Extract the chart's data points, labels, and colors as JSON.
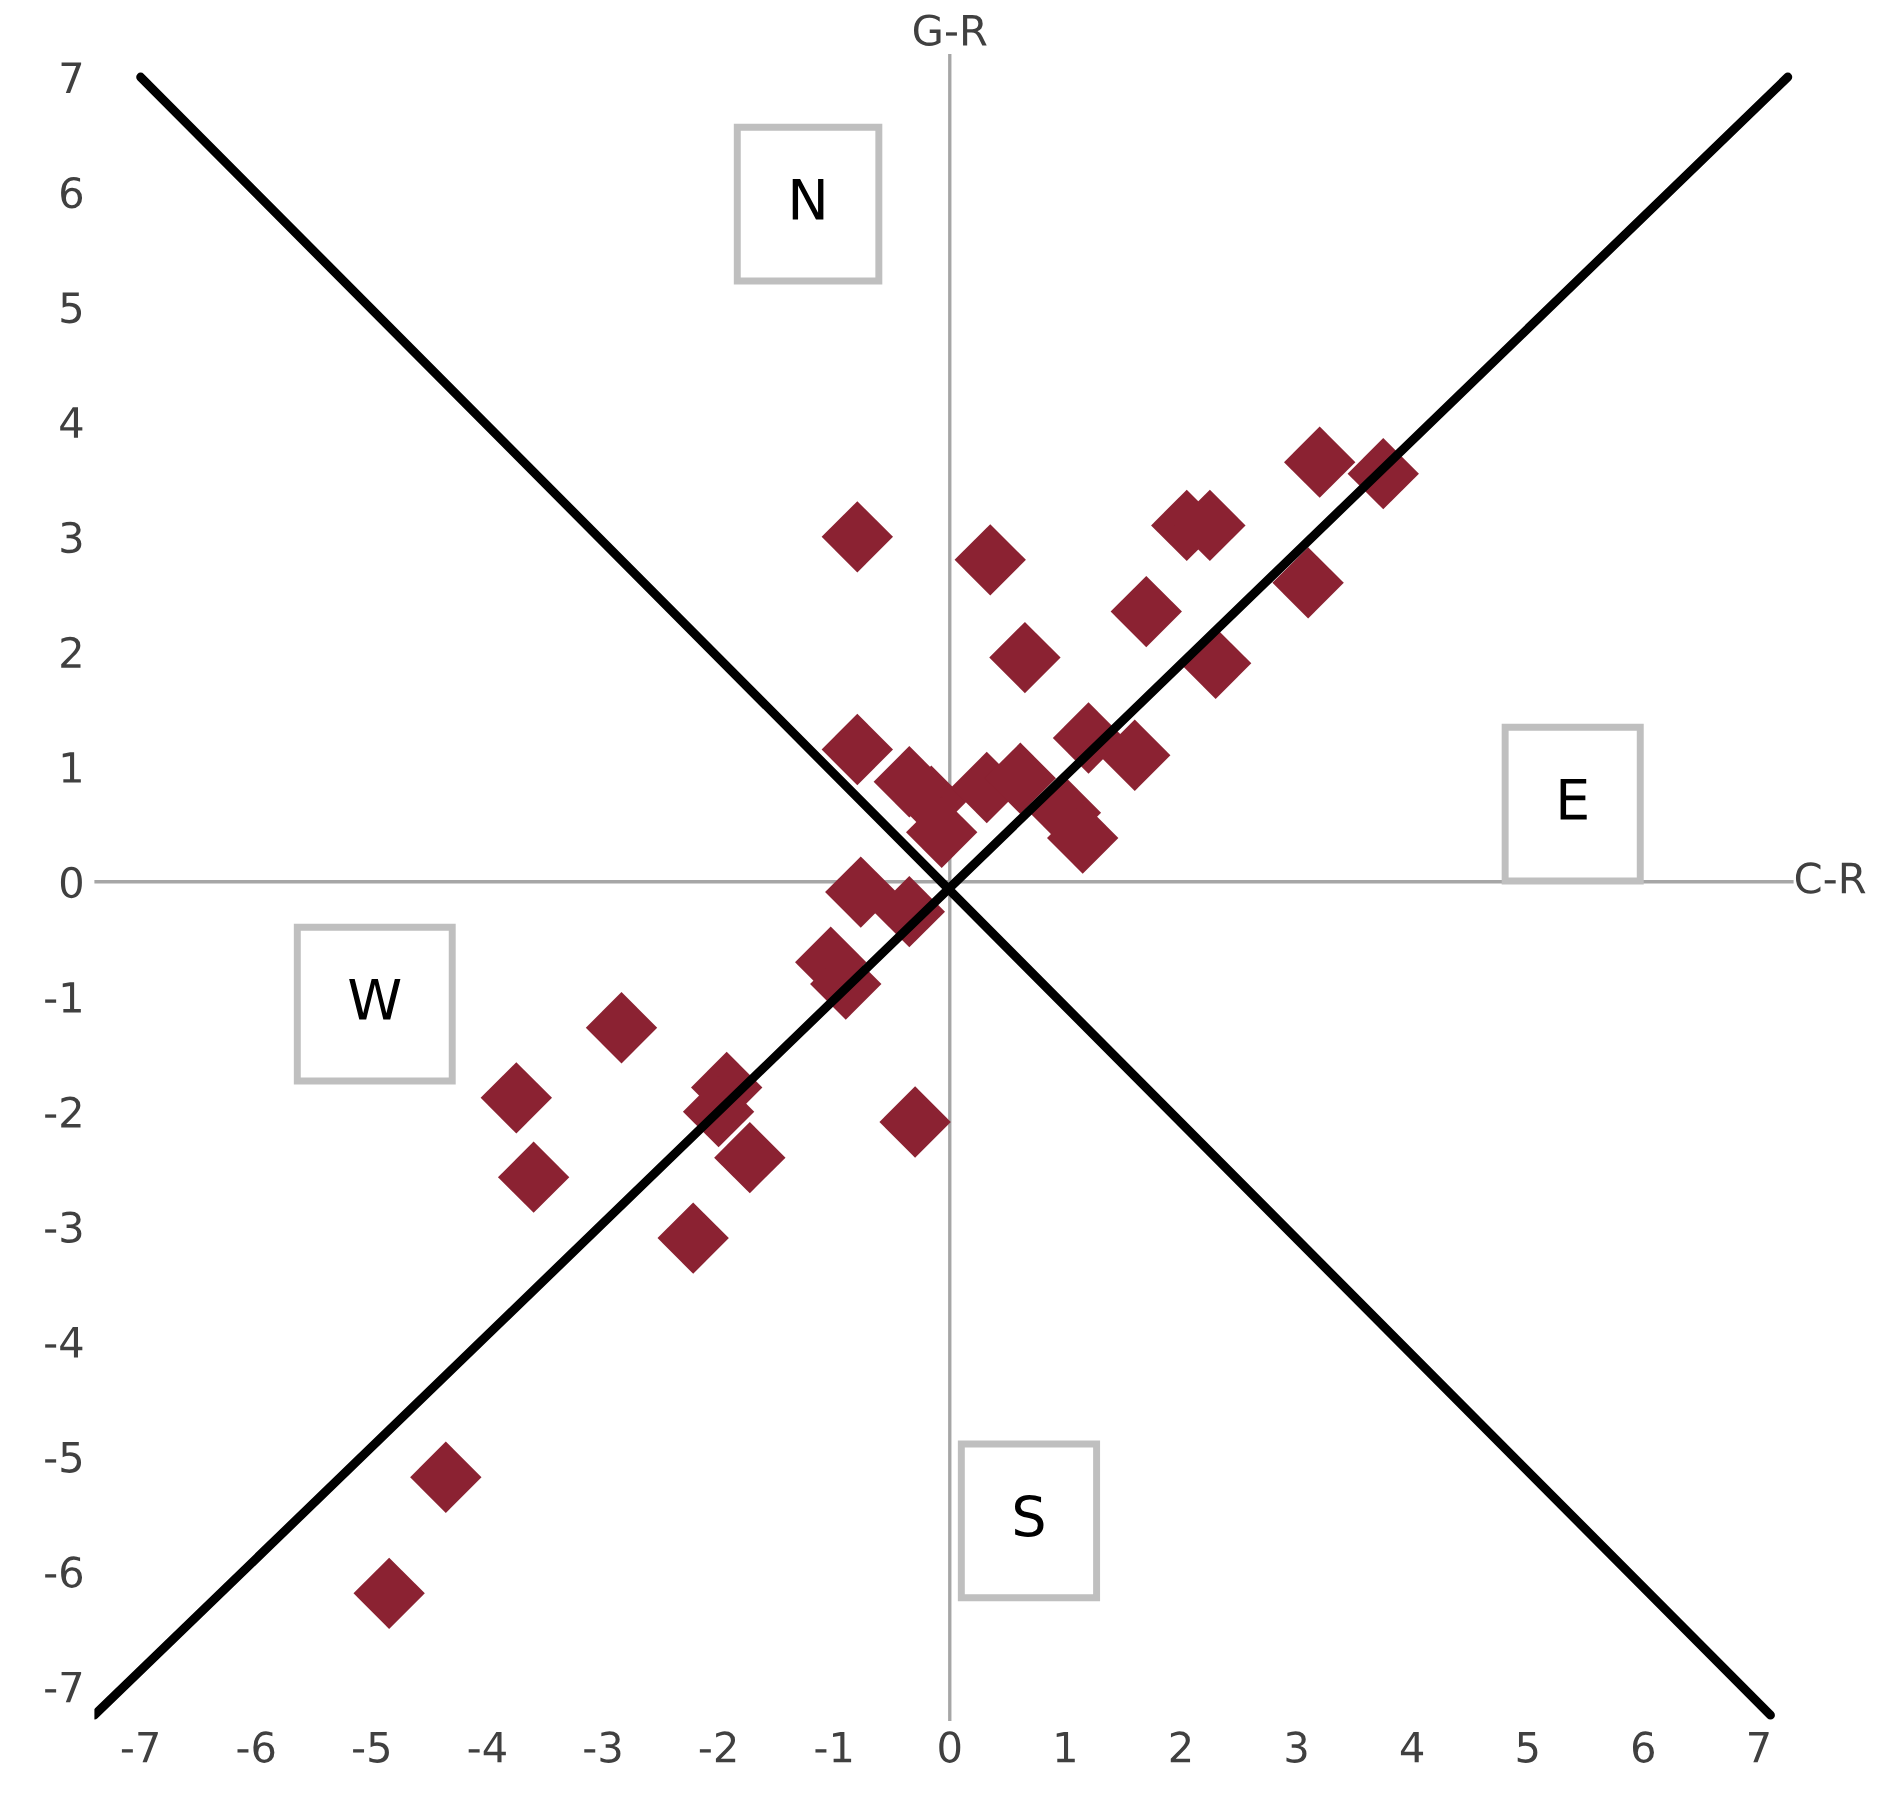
{
  "chart_data": {
    "type": "scatter",
    "marker": "diamond",
    "grid": false,
    "legend": false,
    "xlim": [
      -7.4,
      7.3
    ],
    "ylim": [
      -7.3,
      7.2
    ],
    "xticks": [
      -7,
      -6,
      -5,
      -4,
      -3,
      -2,
      -1,
      0,
      1,
      2,
      3,
      4,
      5,
      6,
      7
    ],
    "yticks": [
      -7,
      -6,
      -5,
      -4,
      -3,
      -2,
      -1,
      0,
      1,
      2,
      3,
      4,
      5,
      6,
      7
    ],
    "series": [
      {
        "color": "#8b2232",
        "x": [
          3.2,
          3.75,
          2.05,
          2.25,
          3.1,
          0.35,
          -0.8,
          1.7,
          0.65,
          2.3,
          -0.8,
          1.2,
          1.6,
          -0.35,
          -0.16,
          -0.07,
          0.32,
          0.61,
          1.0,
          1.15,
          -0.77,
          -0.35,
          -1.03,
          -0.9,
          -2.84,
          -3.75,
          -1.93,
          -2.0,
          -0.3,
          -3.6,
          -1.73,
          -2.22,
          -4.36,
          -4.85
        ],
        "values": [
          3.65,
          3.55,
          3.1,
          3.1,
          2.6,
          2.8,
          3.0,
          2.35,
          1.95,
          1.9,
          1.15,
          1.25,
          1.1,
          0.87,
          0.7,
          0.43,
          0.82,
          0.9,
          0.6,
          0.38,
          -0.09,
          -0.26,
          -0.7,
          -0.89,
          -1.27,
          -1.88,
          -1.79,
          -2.0,
          -2.09,
          -2.57,
          -2.4,
          -3.1,
          -5.18,
          -6.19
        ]
      },
      {
        "type": "line",
        "color": "#000000",
        "marker": "none",
        "x": [
          -7.4,
          7.25
        ],
        "values": [
          -7.25,
          7.0
        ]
      },
      {
        "type": "line",
        "color": "#000000",
        "marker": "none",
        "x": [
          -7.0,
          7.1
        ],
        "values": [
          7.0,
          -7.25
        ]
      }
    ],
    "ref_lines": [
      {
        "axis": "y",
        "value": 0,
        "label": "C-R",
        "color": "#a6a6a6"
      },
      {
        "axis": "x",
        "value": 0,
        "label": "G-R",
        "color": "#a6a6a6"
      }
    ],
    "annotations": [
      "N",
      "E",
      "W",
      "S"
    ]
  }
}
